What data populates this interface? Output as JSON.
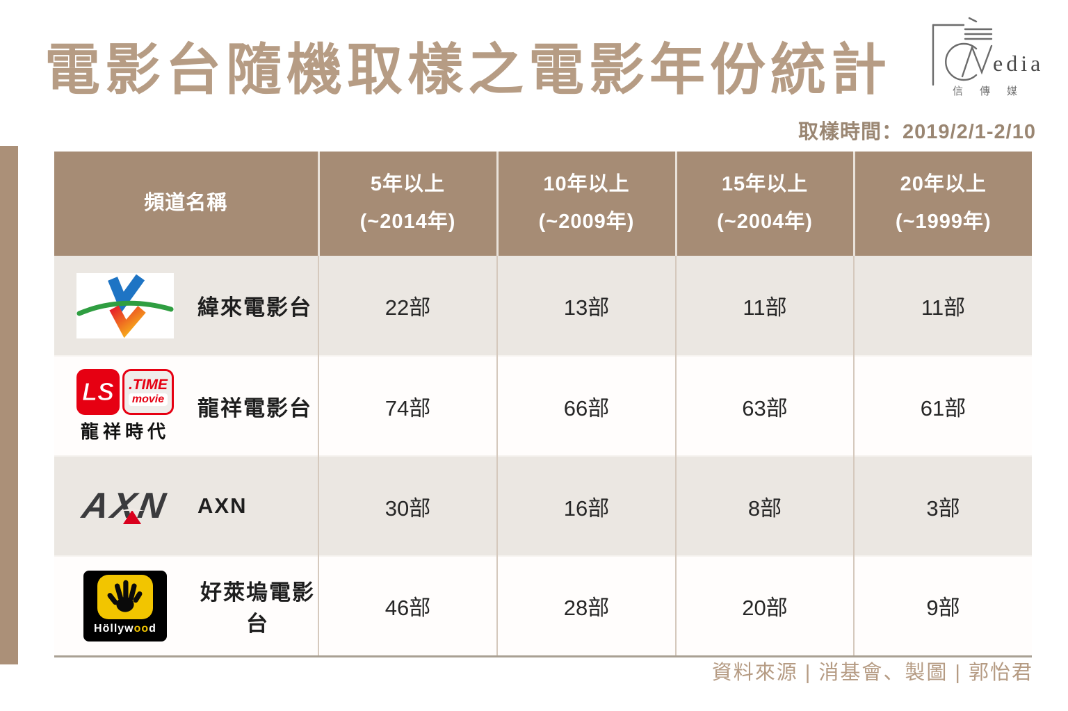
{
  "page": {
    "title": "電影台隨機取樣之電影年份統計",
    "sampling_time": "取樣時間：2019/2/1-2/10",
    "footer_credit": "資料來源 | 消基會、製圖 | 郭怡君"
  },
  "brand": {
    "latin": "edia",
    "chinese": "信傳媒"
  },
  "table": {
    "header": {
      "channel": "頻道名稱",
      "periods": [
        {
          "line1": "5年以上",
          "line2": "(~2014年)"
        },
        {
          "line1": "10年以上",
          "line2": "(~2009年)"
        },
        {
          "line1": "15年以上",
          "line2": "(~2004年)"
        },
        {
          "line1": "20年以上",
          "line2": "(~1999年)"
        }
      ]
    },
    "rows": [
      {
        "channel": "緯來電影台",
        "logo": "videoland",
        "values": [
          "22部",
          "13部",
          "11部",
          "11部"
        ]
      },
      {
        "channel": "龍祥電影台",
        "logo": "lstime",
        "values": [
          "74部",
          "66部",
          "63部",
          "61部"
        ]
      },
      {
        "channel": "AXN",
        "logo": "axn",
        "values": [
          "30部",
          "16部",
          "8部",
          "3部"
        ]
      },
      {
        "channel": "好萊塢電影台",
        "logo": "hollywood",
        "values": [
          "46部",
          "28部",
          "20部",
          "9部"
        ]
      }
    ]
  },
  "logos": {
    "lstime": {
      "ls": "LS",
      "time": ".TIME",
      "movie": "movie",
      "caption": "龍祥時代"
    },
    "axn": {
      "text": "AXN"
    },
    "hollywood": {
      "t1": "H",
      "t2": "öllyw",
      "o1": "o",
      "o2": "o",
      "t3": "d"
    }
  },
  "chart_data": {
    "type": "table",
    "title": "電影台隨機取樣之電影年份統計",
    "sampling_period": "2019/2/1-2/10",
    "unit": "部",
    "columns": [
      "頻道名稱",
      "5年以上 (~2014年)",
      "10年以上 (~2009年)",
      "15年以上 (~2004年)",
      "20年以上 (~1999年)"
    ],
    "rows": [
      {
        "channel": "緯來電影台",
        "values": [
          22,
          13,
          11,
          11
        ]
      },
      {
        "channel": "龍祥電影台",
        "values": [
          74,
          66,
          63,
          61
        ]
      },
      {
        "channel": "AXN",
        "values": [
          30,
          16,
          8,
          3
        ]
      },
      {
        "channel": "好萊塢電影台",
        "values": [
          46,
          28,
          20,
          9
        ]
      }
    ],
    "source": "消基會",
    "credit": "郭怡君",
    "legend_position": "none",
    "grid": false
  }
}
